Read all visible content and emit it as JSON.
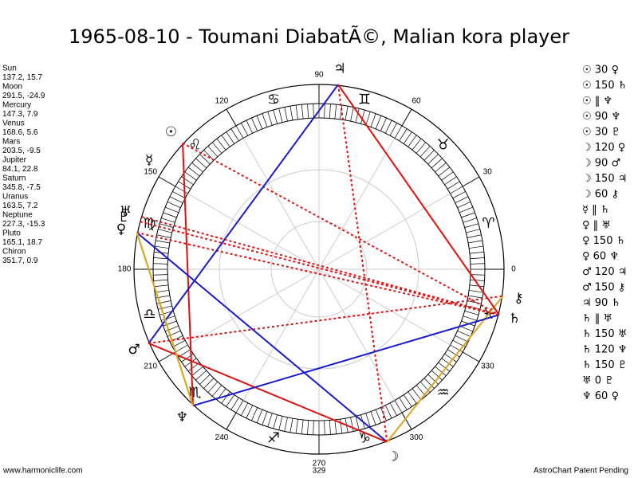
{
  "header": {
    "title": "1965-08-10 - Toumani DiabatÃ©, Malian kora player"
  },
  "planets": [
    {
      "name": "Sun",
      "position": "137.2, 15.7",
      "glyph": "☉"
    },
    {
      "name": "Moon",
      "position": "291.5, -24.9",
      "glyph": "☽"
    },
    {
      "name": "Mercury",
      "position": "147.3, 7.9",
      "glyph": "☿"
    },
    {
      "name": "Venus",
      "position": "168.6, 5.6",
      "glyph": "♀"
    },
    {
      "name": "Mars",
      "position": "203.5, -9.5",
      "glyph": "♂"
    },
    {
      "name": "Jupiter",
      "position": "84.1, 22.8",
      "glyph": "♃"
    },
    {
      "name": "Saturn",
      "position": "345.8, -7.5",
      "glyph": "♄"
    },
    {
      "name": "Uranus",
      "position": "163.5, 7.2",
      "glyph": "♅"
    },
    {
      "name": "Neptune",
      "position": "227.3, -15.3",
      "glyph": "♆"
    },
    {
      "name": "Pluto",
      "position": "165.1, 18.7",
      "glyph": "♇"
    },
    {
      "name": "Chiron",
      "position": "351.7, 0.9",
      "glyph": "⚷"
    }
  ],
  "aspects": [
    "☉ 30 ♀",
    "☉ 150 ♄",
    "☉ ‖ ♆",
    "☉ 90 ♆",
    "☉ 30 ♇",
    "☽ 120 ♀",
    "☽ 90 ♂",
    "☽ 150 ♃",
    "☽ 60 ⚷",
    "☿ ‖ ♄",
    "♀ ‖ ♅",
    "♀ 150 ♄",
    "♀ 60 ♆",
    "♂ 120 ♃",
    "♂ 150 ⚷",
    "♃ 90 ♄",
    "♄ ‖ ♅",
    "♄ 150 ♅",
    "♄ 120 ♆",
    "♄ 150 ♇",
    "♅ 0 ♇",
    "♆ 60 ♀"
  ],
  "signs": [
    "♈",
    "♉",
    "♊",
    "♋",
    "♌",
    "♍",
    "♎",
    "♏",
    "♐",
    "♑",
    "♒",
    "♓"
  ],
  "degrees": [
    0,
    30,
    60,
    90,
    120,
    150,
    180,
    210,
    240,
    270,
    300,
    330
  ],
  "ascendant": 329,
  "footer": {
    "left": "www.harmoniclife.com",
    "right": "AstroChart Patent Pending"
  }
}
